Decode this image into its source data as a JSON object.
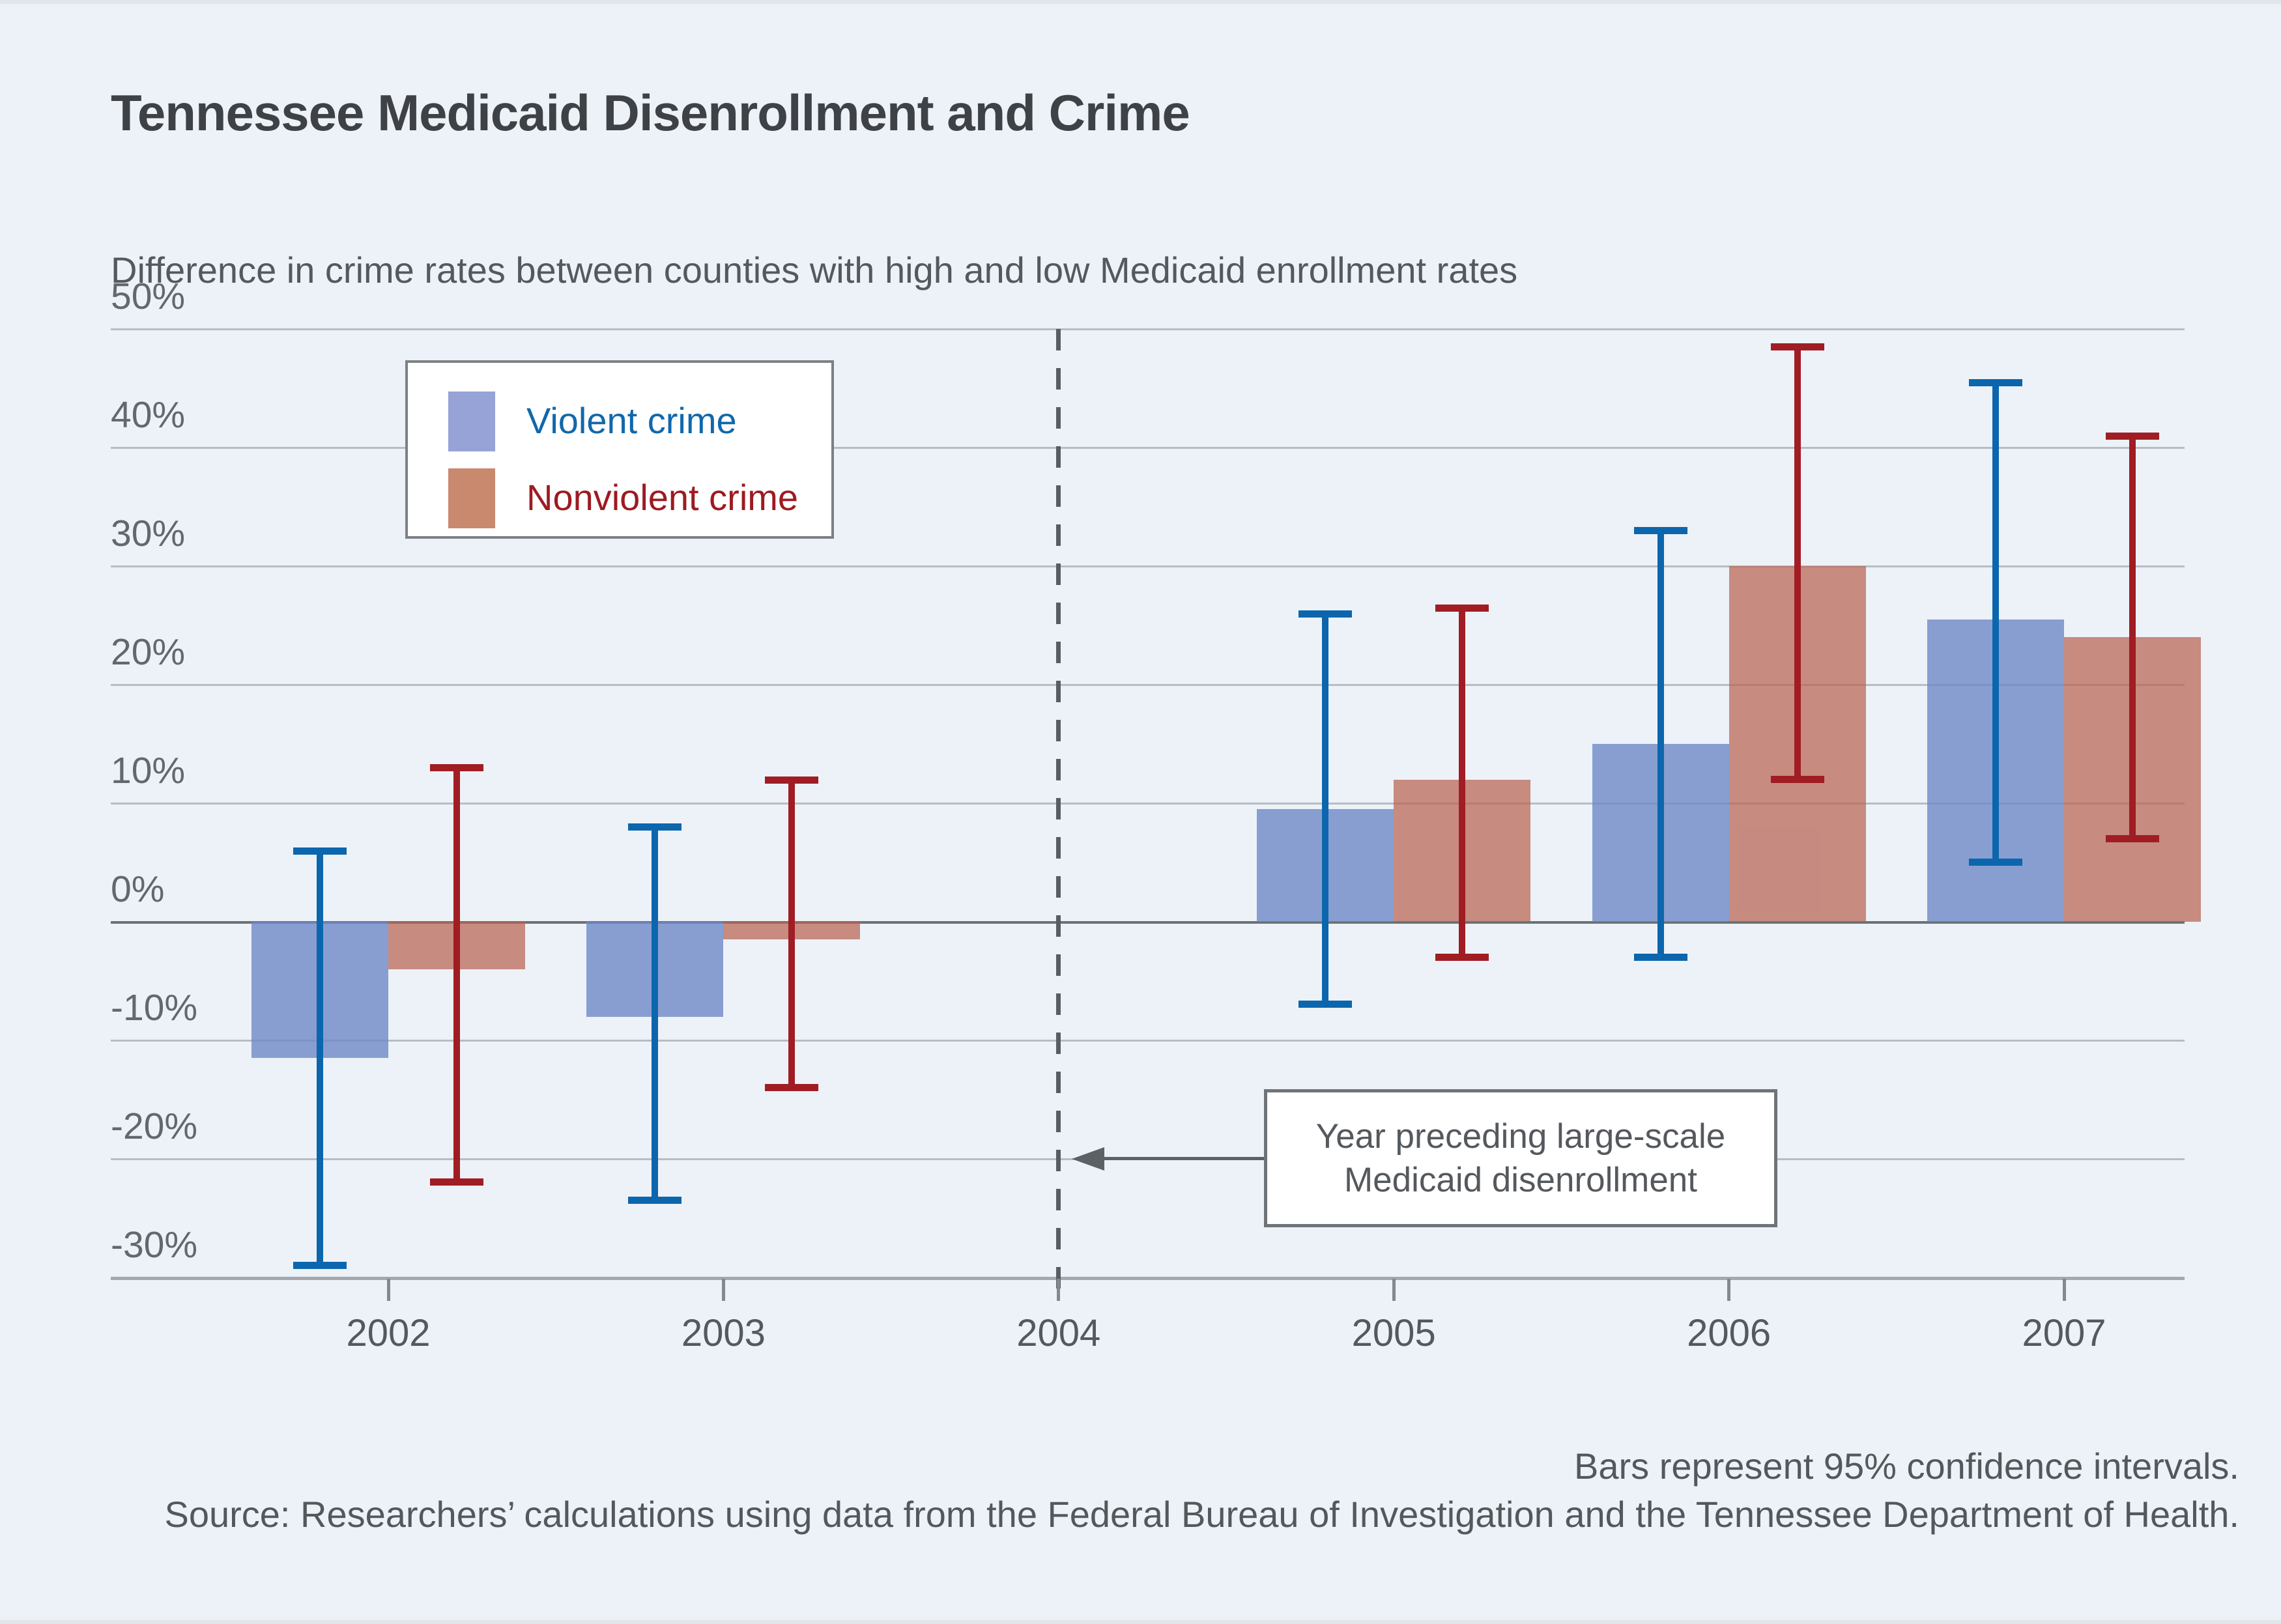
{
  "page": {
    "background": "#edf2f8"
  },
  "chart_data": {
    "type": "bar",
    "title": "Tennessee Medicaid Disenrollment and Crime",
    "subtitle": "Difference in crime rates between counties with high and low Medicaid enrollment rates",
    "categories": [
      "2002",
      "2003",
      "2004",
      "2005",
      "2006",
      "2007"
    ],
    "series": [
      {
        "name": "Violent crime",
        "bar_color": "rgba(110,136,199,0.8)",
        "legend_swatch_color": "#97a2d6",
        "label_color": "#1068ab",
        "error_color": "#0c66ad",
        "values": [
          -11.5,
          -8,
          null,
          9.5,
          15,
          25.5
        ],
        "ci_high": [
          6,
          8,
          null,
          26,
          33,
          45.5
        ],
        "ci_low": [
          -29,
          -23.5,
          null,
          -7,
          -3,
          5
        ]
      },
      {
        "name": "Nonviolent crime",
        "bar_color": "rgba(184,98,82,0.72)",
        "legend_swatch_color": "#c9896f",
        "label_color": "#9d1b21",
        "error_color": "#a01d23",
        "values": [
          -4,
          -1.5,
          null,
          12,
          30,
          24
        ],
        "ci_high": [
          13,
          12,
          null,
          26.5,
          48.5,
          41
        ],
        "ci_low": [
          -22,
          -14,
          null,
          -3,
          12,
          7
        ]
      }
    ],
    "ylim": [
      -30,
      50
    ],
    "ytick_step": 10,
    "ytick_suffix": "%",
    "grid": true,
    "legend_position": "top-left-inside",
    "reference_year": "2004"
  },
  "annotation": {
    "line1": "Year preceding large-scale",
    "line2": "Medicaid disenrollment"
  },
  "footer": {
    "note": "Bars represent 95% confidence intervals.",
    "source": "Source: Researchers’ calculations using data from the Federal Bureau of Investigation and the Tennessee Department of Health."
  }
}
